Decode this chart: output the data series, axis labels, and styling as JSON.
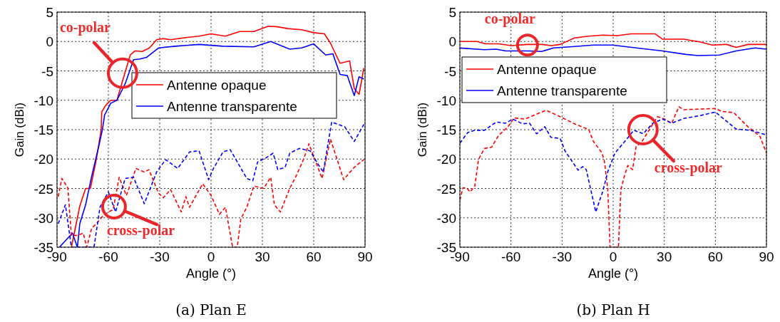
{
  "chart_data": [
    {
      "type": "line",
      "title": "(a) Plan E",
      "xlabel": "Angle (°)",
      "ylabel": "Gain (dBi)",
      "xlim": [
        -90,
        90
      ],
      "xticks": [
        -90,
        -60,
        -30,
        0,
        30,
        60,
        90
      ],
      "ylim": [
        -35,
        5
      ],
      "yticks": [
        -35,
        -30,
        -25,
        -20,
        -15,
        -10,
        -5,
        0,
        5
      ],
      "grid": true,
      "legend": "right",
      "annotations": [
        {
          "text": "co-polar",
          "x": -51.7,
          "y": -5.4
        },
        {
          "text": "cross-polar",
          "x": -56.7,
          "y": -28.1
        }
      ],
      "series": [
        {
          "name": "Antenne opaque",
          "color": "#ff0000",
          "line_style": "solid",
          "x": [
            -81.6,
            -80.2,
            -76.7,
            -73.3,
            -70.5,
            -67,
            -64.2,
            -63.9,
            -61.4,
            -58.6,
            -55,
            -51.4,
            -47.2,
            -44.4,
            -40.2,
            -36,
            -31.8,
            -27.9,
            -23.7,
            -14,
            -7,
            0,
            8.4,
            16.7,
            25,
            33.5,
            39,
            44.7,
            53,
            60,
            66.3,
            69.8,
            75.4,
            81,
            83.7,
            86.5,
            89.3
          ],
          "values": [
            -35,
            -33,
            -28,
            -25,
            -25,
            -20,
            -15,
            -12,
            -10.8,
            -10,
            -10,
            -6.4,
            -2.3,
            -1.6,
            -1.7,
            -1.1,
            0.3,
            0.5,
            0.3,
            0.7,
            0.9,
            1.3,
            0.9,
            1.7,
            1.7,
            2.6,
            2.5,
            2.2,
            2,
            1.5,
            1.3,
            -0.3,
            -3.7,
            -3.3,
            -8,
            -9,
            -4.5
          ]
        },
        {
          "name": "Antenne transparente",
          "color": "#0000ff",
          "line_style": "solid",
          "x": [
            -88.6,
            -81,
            -78.1,
            -76.7,
            -73.3,
            -69.8,
            -65.6,
            -63.5,
            -62.2,
            -58.6,
            -55,
            -50.2,
            -45.3,
            -41.9,
            -37.7,
            -30.7,
            -20.9,
            -7,
            7,
            25,
            34.9,
            46,
            53,
            60,
            67,
            71.2,
            75.4,
            79.6,
            83.7,
            86.5,
            89.3
          ],
          "values": [
            -35,
            -32.6,
            -35,
            -31,
            -27.8,
            -23,
            -17.8,
            -15,
            -12.5,
            -10.5,
            -10,
            -7.2,
            -3.1,
            -3,
            -2.7,
            -1.1,
            -0.8,
            -0.5,
            -0.8,
            -0.9,
            0,
            -1.3,
            -1.1,
            -0.4,
            -2.3,
            -2.1,
            -5.6,
            -5.8,
            -9.2,
            -6,
            -6.4
          ]
        },
        {
          "color": "#ff0000",
          "line_style": "dashed",
          "x": [
            -89.3,
            -87.2,
            -83.7,
            -81.6,
            -78.1,
            -74.7,
            -72.6,
            -69.8,
            -67,
            -63.5,
            -60,
            -57.2,
            -53.7,
            -49.5,
            -43.9,
            -39,
            -36.3,
            -30.7,
            -27.9,
            -23.7,
            -17.4,
            -14.7,
            -12.6,
            -4.9,
            0,
            4.9,
            8.4,
            12.6,
            15.3,
            17.4,
            20.9,
            25,
            30.7,
            34.9,
            37,
            40.5,
            46,
            50.2,
            54.4,
            57.2,
            64.9,
            69.8,
            77.5,
            83.7,
            89.3
          ],
          "values": [
            -26.4,
            -23.3,
            -24.9,
            -33,
            -33,
            -32.6,
            -35,
            -31.8,
            -31,
            -29.8,
            -29,
            -28.6,
            -23.1,
            -26.2,
            -21.6,
            -22.2,
            -21.8,
            -25.8,
            -26.6,
            -25.2,
            -29,
            -26.4,
            -28.2,
            -24.2,
            -26.2,
            -29.4,
            -28.2,
            -35,
            -35,
            -30.2,
            -28.2,
            -24.6,
            -25,
            -23.1,
            -27.8,
            -29,
            -25,
            -22.6,
            -19.8,
            -17.4,
            -23.3,
            -16.6,
            -23.5,
            -21.4,
            -20.1
          ]
        },
        {
          "color": "#0000ff",
          "line_style": "dashed",
          "x": [
            -89.3,
            -85.1,
            -81.6,
            -68.4,
            -64.9,
            -60,
            -55.8,
            -50.2,
            -45.3,
            -39,
            -31.8,
            -26.5,
            -19.5,
            -12.6,
            -7,
            -1.4,
            1.4,
            7,
            11.2,
            20.9,
            24.4,
            27.2,
            32.1,
            36.3,
            39,
            43.3,
            46,
            51.6,
            57.9,
            62.8,
            65.6,
            70.5,
            78.1,
            83.7,
            89.3
          ],
          "values": [
            -31,
            -27.8,
            -35,
            -35,
            -28.2,
            -25.6,
            -29,
            -23.3,
            -23.1,
            -27.6,
            -22.2,
            -20.1,
            -21.6,
            -18.8,
            -18.6,
            -23.5,
            -21.6,
            -18.8,
            -18.4,
            -23.3,
            -23.7,
            -20.5,
            -19.8,
            -19,
            -21.8,
            -21.4,
            -19,
            -18.2,
            -18.6,
            -21,
            -22.2,
            -13.7,
            -14.5,
            -17,
            -14.1
          ]
        }
      ]
    },
    {
      "type": "line",
      "title": "(b) Plan H",
      "xlabel": "Angle (°)",
      "ylabel": "Gain (dBi)",
      "xlim": [
        -90,
        90
      ],
      "xticks": [
        -90,
        -60,
        -30,
        0,
        30,
        60,
        90
      ],
      "ylim": [
        -35,
        5
      ],
      "yticks": [
        -35,
        -30,
        -25,
        -20,
        -15,
        -10,
        -5,
        0,
        5
      ],
      "grid": true,
      "legend": "top left",
      "annotations": [
        {
          "text": "co-polar",
          "x": -50.3,
          "y": -0.6
        },
        {
          "text": "cross-polar",
          "x": 17.5,
          "y": -15
        }
      ],
      "series": [
        {
          "name": "Antenne opaque",
          "color": "#ff0000",
          "line_style": "solid",
          "x": [
            -90,
            -80,
            -75,
            -67.3,
            -60,
            -50.3,
            -41.9,
            -36.3,
            -31.1,
            -22.7,
            -14.4,
            -6,
            2.4,
            10.7,
            24.7,
            28.9,
            41.5,
            51.2,
            58.2,
            66.6,
            72.2,
            79.2,
            90
          ],
          "values": [
            0,
            0,
            -0.4,
            -0.4,
            -0.7,
            -0.5,
            -0.5,
            -0.7,
            -0.5,
            0.6,
            0.9,
            1.1,
            1,
            1.3,
            1.3,
            0.4,
            0.4,
            -0.1,
            -0.6,
            -0.5,
            -1,
            -0.5,
            -0.5
          ]
        },
        {
          "name": "Antenne transparente",
          "color": "#0000ff",
          "line_style": "solid",
          "x": [
            -90,
            -75.6,
            -68.7,
            -63.1,
            -50.3,
            -42,
            -35,
            -25.5,
            -11.6,
            -0.4,
            13.6,
            28.9,
            42.8,
            49.8,
            62.4,
            72.2,
            83.3,
            90
          ],
          "values": [
            -1.1,
            -1.4,
            -1.3,
            -1.6,
            -1.6,
            -1.7,
            -1.1,
            -0.9,
            -0.6,
            -0.6,
            -1.1,
            -1.6,
            -2.2,
            -2.4,
            -2.3,
            -1.6,
            -1.1,
            -1.3
          ]
        },
        {
          "color": "#ff0000",
          "line_style": "dashed",
          "x": [
            -90,
            -88.2,
            -86.1,
            -84,
            -81.2,
            -79.1,
            -75.6,
            -71.4,
            -67.3,
            -61.7,
            -58.2,
            -51.9,
            -39.4,
            -31.1,
            -22.7,
            -14.3,
            -11.6,
            -6.7,
            -5.3,
            -3.2,
            -1.8,
            3.1,
            4.5,
            6.6,
            8.6,
            11.4,
            13.5,
            16.3,
            26,
            30.3,
            34.4,
            38.6,
            41.4,
            60,
            63.8,
            70.8,
            79.1,
            86.1,
            90
          ],
          "values": [
            -27,
            -24.9,
            -24.9,
            -25.6,
            -24.6,
            -20.1,
            -18.2,
            -18,
            -16,
            -14.5,
            -13,
            -13.2,
            -11.7,
            -12.8,
            -14,
            -15,
            -17,
            -18.9,
            -20.1,
            -25,
            -35,
            -35,
            -25.3,
            -22.9,
            -21.1,
            -21.8,
            -17.8,
            -17.3,
            -12.8,
            -13.2,
            -13.9,
            -11.1,
            -11.6,
            -11.4,
            -11.9,
            -12.1,
            -14.5,
            -16.1,
            -19
          ]
        },
        {
          "color": "#0000ff",
          "line_style": "dashed",
          "x": [
            -90,
            -85.4,
            -81.2,
            -75.6,
            -68.6,
            -63.1,
            -58.9,
            -53.3,
            -49.1,
            -45,
            -40.1,
            -36.6,
            -31.1,
            -28.3,
            -20.6,
            -17.9,
            -15.8,
            -10.2,
            -6,
            -3.2,
            1,
            8,
            12.1,
            17.7,
            23.3,
            28.9,
            34.4,
            41.4,
            51.2,
            60,
            72.2,
            80.5,
            90
          ],
          "values": [
            -17.3,
            -15.5,
            -15.1,
            -15.1,
            -13.7,
            -13.9,
            -13.2,
            -14,
            -13.9,
            -15.7,
            -14.5,
            -16.3,
            -16.5,
            -18.6,
            -21.9,
            -21.3,
            -21.8,
            -29,
            -25.4,
            -22.2,
            -19,
            -16.6,
            -15.1,
            -15.7,
            -13.9,
            -13.2,
            -13.9,
            -13.1,
            -12.6,
            -12,
            -14.9,
            -15.1,
            -15.9
          ]
        }
      ]
    }
  ]
}
